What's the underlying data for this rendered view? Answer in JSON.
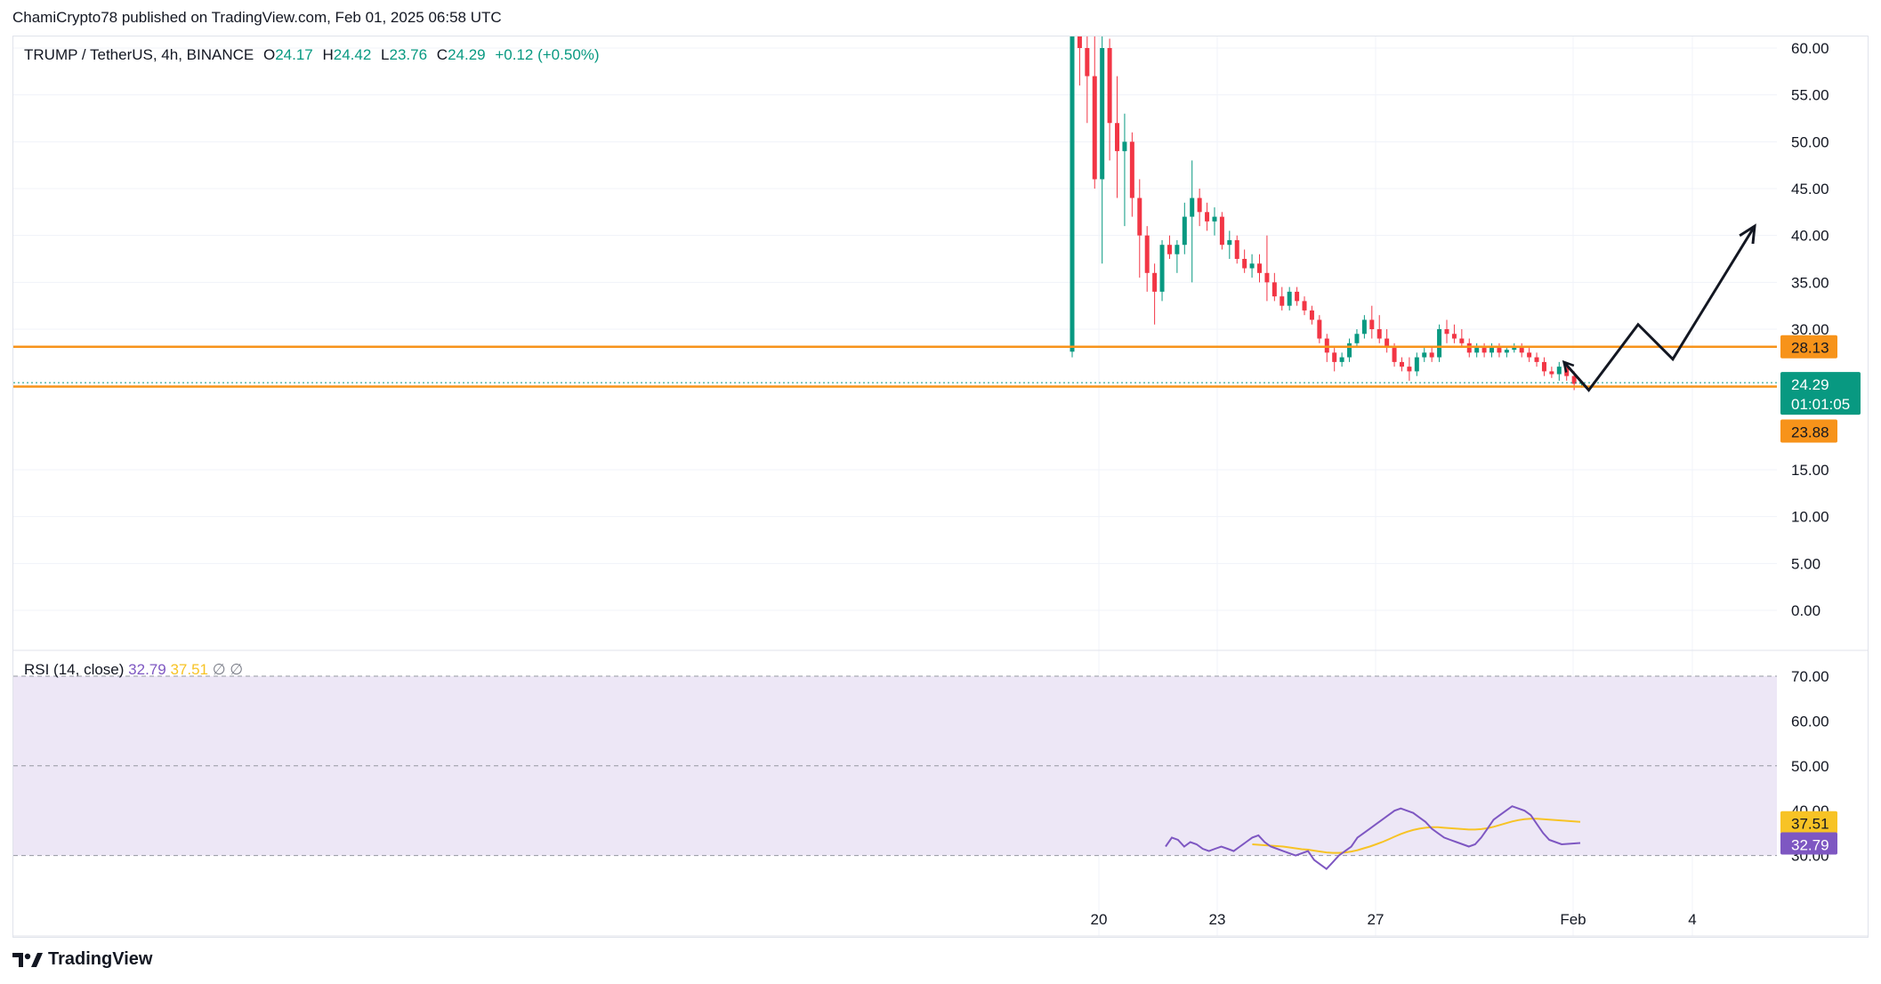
{
  "header": {
    "attribution": "ChamiCrypto78 published on TradingView.com, Feb 01, 2025 06:58 UTC"
  },
  "legend": {
    "symbol": "TRUMP / TetherUS, 4h, BINANCE",
    "open_label": "O",
    "open": "24.17",
    "high_label": "H",
    "high": "24.42",
    "low_label": "L",
    "low": "23.76",
    "close_label": "C",
    "close": "24.29",
    "change": "+0.12 (+0.50%)"
  },
  "rsi_legend": {
    "title": "RSI (14, close)",
    "rsi": "32.79",
    "ma": "37.51",
    "extra1": "∅",
    "extra2": "∅"
  },
  "footer": {
    "brand": "TradingView"
  },
  "colors": {
    "up": "#089981",
    "down": "#f23645",
    "level": "#f7931a",
    "rsi": "#7e57c2",
    "rsi_ma": "#f7c325",
    "rsi_band": "#ede7f6",
    "grid": "#f0f3fa",
    "price_tag": "#089981",
    "projection": "#131722"
  },
  "chart_data": [
    {
      "type": "candlestick",
      "title": "",
      "ylim": [
        0,
        60
      ],
      "y_ticks": [
        "60.00",
        "55.00",
        "50.00",
        "45.00",
        "40.00",
        "35.00",
        "30.00",
        "15.00",
        "10.00",
        "5.00",
        "0.00"
      ],
      "x_ticks": [
        "20",
        "23",
        "27",
        "Feb",
        "4"
      ],
      "x_axis": "date",
      "last_price": "24.29",
      "countdown": "01:01:05",
      "levels": [
        {
          "value": 28.13,
          "label": "28.13"
        },
        {
          "value": 23.88,
          "label": "23.88"
        }
      ],
      "ohlc": [
        [
          27.6,
          74.0,
          27.0,
          73.0
        ],
        [
          73.0,
          75.0,
          56.0,
          60.0
        ],
        [
          60.0,
          66.0,
          52.0,
          57.0
        ],
        [
          57.0,
          62.0,
          45.0,
          46.0
        ],
        [
          46.0,
          62.0,
          37.0,
          60.0
        ],
        [
          60.0,
          61.0,
          48.0,
          52.0
        ],
        [
          52.0,
          57.0,
          44.0,
          49.0
        ],
        [
          49.0,
          53.0,
          41.0,
          50.0
        ],
        [
          50.0,
          51.0,
          42.0,
          44.0
        ],
        [
          44.0,
          46.0,
          35.5,
          40.0
        ],
        [
          40.0,
          41.0,
          34.0,
          36.0
        ],
        [
          36.0,
          37.0,
          30.5,
          34.0
        ],
        [
          34.0,
          39.5,
          33.0,
          39.0
        ],
        [
          39.0,
          40.0,
          37.5,
          38.0
        ],
        [
          38.0,
          39.5,
          36.0,
          39.0
        ],
        [
          39.0,
          43.5,
          38.0,
          42.0
        ],
        [
          42.0,
          48.0,
          35.0,
          44.0
        ],
        [
          44.0,
          45.0,
          41.0,
          42.5
        ],
        [
          42.5,
          43.5,
          40.5,
          41.5
        ],
        [
          41.5,
          43.0,
          40.0,
          42.0
        ],
        [
          42.0,
          42.5,
          38.5,
          39.0
        ],
        [
          39.0,
          40.5,
          37.5,
          39.5
        ],
        [
          39.5,
          40.0,
          37.0,
          37.5
        ],
        [
          37.5,
          38.5,
          36.0,
          36.5
        ],
        [
          36.5,
          38.0,
          35.5,
          37.0
        ],
        [
          37.0,
          38.0,
          35.0,
          36.0
        ],
        [
          36.0,
          40.0,
          33.0,
          35.0
        ],
        [
          35.0,
          36.0,
          33.0,
          33.5
        ],
        [
          33.5,
          34.5,
          32.0,
          32.5
        ],
        [
          32.5,
          34.5,
          32.0,
          34.0
        ],
        [
          34.0,
          34.5,
          32.5,
          33.0
        ],
        [
          33.0,
          33.5,
          31.5,
          32.0
        ],
        [
          32.0,
          32.5,
          30.5,
          31.0
        ],
        [
          31.0,
          31.5,
          28.5,
          29.0
        ],
        [
          29.0,
          29.5,
          26.5,
          27.5
        ],
        [
          27.5,
          28.0,
          25.5,
          26.5
        ],
        [
          26.5,
          27.5,
          26.0,
          27.0
        ],
        [
          27.0,
          29.0,
          26.5,
          28.5
        ],
        [
          28.5,
          30.0,
          28.0,
          29.5
        ],
        [
          29.5,
          31.5,
          29.0,
          31.0
        ],
        [
          31.0,
          32.5,
          29.0,
          30.0
        ],
        [
          30.0,
          31.5,
          28.5,
          29.0
        ],
        [
          29.0,
          30.0,
          27.5,
          28.0
        ],
        [
          28.0,
          28.5,
          26.0,
          26.5
        ],
        [
          26.5,
          27.0,
          25.5,
          26.0
        ],
        [
          26.0,
          27.0,
          24.5,
          25.5
        ],
        [
          25.5,
          27.5,
          25.0,
          27.0
        ],
        [
          27.0,
          28.0,
          26.5,
          27.5
        ],
        [
          27.5,
          28.0,
          26.5,
          27.0
        ],
        [
          27.0,
          30.5,
          26.5,
          30.0
        ],
        [
          30.0,
          31.0,
          28.5,
          29.5
        ],
        [
          29.5,
          30.5,
          28.5,
          29.0
        ],
        [
          29.0,
          30.0,
          28.0,
          28.5
        ],
        [
          28.5,
          29.0,
          27.0,
          27.5
        ],
        [
          27.5,
          28.5,
          27.0,
          28.0
        ],
        [
          28.0,
          28.5,
          27.0,
          27.5
        ],
        [
          27.5,
          28.5,
          27.0,
          28.0
        ],
        [
          28.0,
          28.5,
          27.0,
          27.5
        ],
        [
          27.5,
          28.0,
          27.0,
          27.8
        ],
        [
          27.8,
          28.5,
          27.5,
          28.0
        ],
        [
          28.0,
          28.5,
          27.0,
          27.5
        ],
        [
          27.5,
          28.0,
          26.5,
          27.0
        ],
        [
          27.0,
          27.5,
          26.0,
          26.5
        ],
        [
          26.5,
          27.0,
          25.0,
          25.5
        ],
        [
          25.5,
          26.0,
          24.8,
          25.2
        ],
        [
          25.2,
          26.5,
          24.5,
          26.0
        ],
        [
          26.0,
          26.5,
          24.5,
          25.0
        ],
        [
          25.0,
          25.5,
          23.5,
          24.17
        ],
        [
          24.17,
          24.42,
          23.76,
          24.29
        ]
      ]
    },
    {
      "type": "line",
      "title": "",
      "ylim": [
        20,
        70
      ],
      "y_ticks": [
        "70.00",
        "60.00",
        "50.00",
        "40.00",
        "30.00"
      ],
      "band": [
        30,
        70
      ],
      "series": [
        {
          "values": [
            32,
            34,
            33.5,
            32,
            33,
            32.5,
            31.5,
            31,
            31.5,
            32,
            31.5,
            31,
            32,
            33,
            34,
            34.5,
            33,
            32,
            31.5,
            31,
            30.5,
            30,
            30.5,
            31,
            29,
            28,
            27,
            28.5,
            30,
            31,
            32,
            34,
            35,
            36,
            37,
            38,
            39,
            40,
            40.5,
            40,
            39.5,
            38.5,
            37.5,
            36,
            35,
            34,
            33.5,
            33,
            32.5,
            32,
            32.5,
            34,
            36,
            38,
            39,
            40,
            41,
            40.5,
            40,
            39,
            37,
            35,
            33.5,
            33,
            32.5,
            32.6,
            32.7,
            32.79
          ]
        },
        {
          "values": [
            null,
            null,
            null,
            null,
            null,
            null,
            null,
            null,
            null,
            null,
            null,
            null,
            null,
            null,
            32.5,
            32.4,
            32.3,
            32.2,
            32.1,
            32.0,
            31.8,
            31.6,
            31.4,
            31.3,
            31.1,
            30.9,
            30.7,
            30.6,
            30.6,
            30.7,
            30.9,
            31.2,
            31.6,
            32.0,
            32.5,
            33.0,
            33.6,
            34.2,
            34.8,
            35.3,
            35.7,
            36.0,
            36.2,
            36.3,
            36.3,
            36.2,
            36.1,
            36.0,
            35.9,
            35.8,
            35.8,
            35.9,
            36.1,
            36.4,
            36.8,
            37.2,
            37.6,
            37.9,
            38.1,
            38.2,
            38.2,
            38.1,
            38.0,
            37.9,
            37.8,
            37.7,
            37.6,
            37.51
          ]
        }
      ],
      "last_values": {
        "rsi": "32.79",
        "ma": "37.51"
      }
    }
  ]
}
